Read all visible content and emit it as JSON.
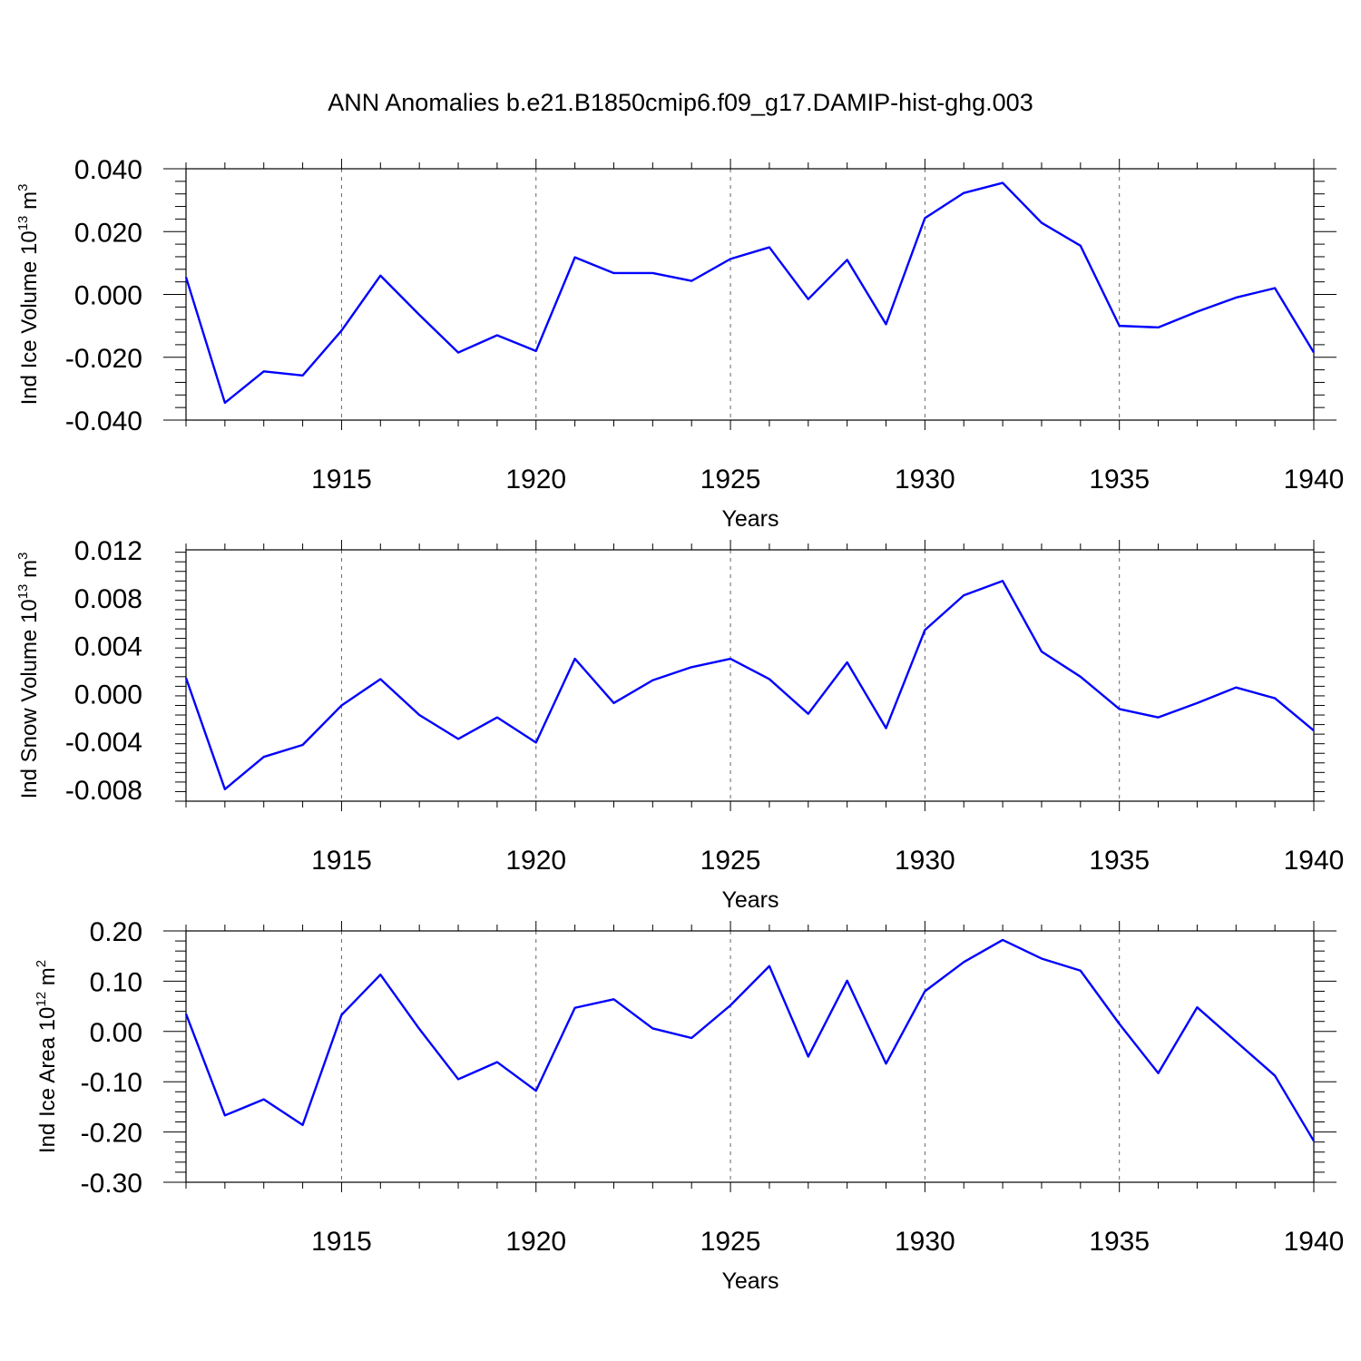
{
  "title": "ANN Anomalies b.e21.B1850cmip6.f09_g17.DAMIP-hist-ghg.003",
  "chart_data": [
    {
      "type": "line",
      "ylabel": "Ind Ice Volume 10",
      "ylabel_sup": "13",
      "ylabel_unit": "m",
      "ylabel_unit_sup": "3",
      "xlabel": "Years",
      "xlim": [
        1911,
        1940
      ],
      "ylim": [
        -0.04,
        0.04
      ],
      "yticks": [
        "0.040",
        "0.020",
        "0.000",
        "-0.020",
        "-0.040"
      ],
      "ytick_values": [
        0.04,
        0.02,
        0.0,
        -0.02,
        -0.04
      ],
      "xticks": [
        "1915",
        "1920",
        "1925",
        "1930",
        "1935",
        "1940"
      ],
      "xtick_values": [
        1915,
        1920,
        1925,
        1930,
        1935,
        1940
      ],
      "grid": "vertical dashed at labeled x ticks",
      "color": "#0000ff",
      "x": [
        1911,
        1912,
        1913,
        1914,
        1915,
        1916,
        1917,
        1918,
        1919,
        1920,
        1921,
        1922,
        1923,
        1924,
        1925,
        1926,
        1927,
        1928,
        1929,
        1930,
        1931,
        1932,
        1933,
        1934,
        1935,
        1936,
        1937,
        1938,
        1939,
        1940
      ],
      "values": [
        0.0055,
        -0.0345,
        -0.0245,
        -0.0258,
        -0.0115,
        0.006,
        -0.0065,
        -0.0185,
        -0.013,
        -0.018,
        0.0118,
        0.0068,
        0.0068,
        0.0043,
        0.0113,
        0.015,
        -0.0015,
        0.011,
        -0.0095,
        0.0243,
        0.0323,
        0.0355,
        0.0228,
        0.0155,
        -0.01,
        -0.0105,
        -0.0055,
        -0.001,
        0.002,
        -0.0185
      ]
    },
    {
      "type": "line",
      "ylabel": "Ind Snow Volume 10",
      "ylabel_sup": "13",
      "ylabel_unit": "m",
      "ylabel_unit_sup": "3",
      "xlabel": "Years",
      "xlim": [
        1911,
        1940
      ],
      "ylim": [
        -0.009,
        0.012
      ],
      "yticks": [
        "0.012",
        "0.008",
        "0.004",
        "0.000",
        "-0.004",
        "-0.008"
      ],
      "ytick_values": [
        0.012,
        0.008,
        0.004,
        0.0,
        -0.004,
        -0.008
      ],
      "xticks": [
        "1915",
        "1920",
        "1925",
        "1930",
        "1935",
        "1940"
      ],
      "xtick_values": [
        1915,
        1920,
        1925,
        1930,
        1935,
        1940
      ],
      "grid": "vertical dashed at labeled x ticks",
      "color": "#0000ff",
      "x": [
        1911,
        1912,
        1913,
        1914,
        1915,
        1916,
        1917,
        1918,
        1919,
        1920,
        1921,
        1922,
        1923,
        1924,
        1925,
        1926,
        1927,
        1928,
        1929,
        1930,
        1931,
        1932,
        1933,
        1934,
        1935,
        1936,
        1937,
        1938,
        1939,
        1940
      ],
      "values": [
        0.0013,
        -0.008,
        -0.0053,
        -0.0043,
        -0.001,
        0.0012,
        -0.0018,
        -0.0038,
        -0.002,
        -0.0041,
        0.0029,
        -0.0008,
        0.0011,
        0.0022,
        0.0029,
        0.0012,
        -0.0017,
        0.0026,
        -0.0029,
        0.0053,
        0.0082,
        0.0094,
        0.0035,
        0.0014,
        -0.0013,
        -0.002,
        -0.0008,
        0.0005,
        -0.0004,
        -0.0031
      ]
    },
    {
      "type": "line",
      "ylabel": "Ind Ice Area 10",
      "ylabel_sup": "12",
      "ylabel_unit": "m",
      "ylabel_unit_sup": "2",
      "xlabel": "Years",
      "xlim": [
        1911,
        1940
      ],
      "ylim": [
        -0.3,
        0.2
      ],
      "yticks": [
        "0.20",
        "0.10",
        "0.00",
        "-0.10",
        "-0.20",
        "-0.30"
      ],
      "ytick_values": [
        0.2,
        0.1,
        0.0,
        -0.1,
        -0.2,
        -0.3
      ],
      "xticks": [
        "1915",
        "1920",
        "1925",
        "1930",
        "1935",
        "1940"
      ],
      "xtick_values": [
        1915,
        1920,
        1925,
        1930,
        1935,
        1940
      ],
      "grid": "vertical dashed at labeled x ticks",
      "color": "#0000ff",
      "x": [
        1911,
        1912,
        1913,
        1914,
        1915,
        1916,
        1917,
        1918,
        1919,
        1920,
        1921,
        1922,
        1923,
        1924,
        1925,
        1926,
        1927,
        1928,
        1929,
        1930,
        1931,
        1932,
        1933,
        1934,
        1935,
        1936,
        1937,
        1938,
        1939,
        1940
      ],
      "values": [
        0.035,
        -0.167,
        -0.135,
        -0.186,
        0.033,
        0.113,
        0.005,
        -0.095,
        -0.061,
        -0.118,
        0.047,
        0.064,
        0.006,
        -0.013,
        0.052,
        0.13,
        -0.05,
        0.101,
        -0.064,
        0.08,
        0.138,
        0.182,
        0.145,
        0.121,
        0.015,
        -0.083,
        0.048,
        -0.02,
        -0.088,
        -0.218
      ]
    }
  ]
}
